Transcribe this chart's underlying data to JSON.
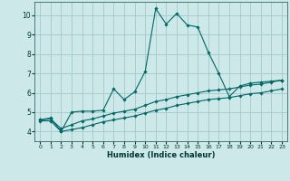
{
  "xlabel": "Humidex (Indice chaleur)",
  "bg_color": "#cce8e8",
  "grid_color": "#aacccc",
  "line_color": "#006666",
  "xlim": [
    -0.5,
    23.5
  ],
  "ylim": [
    3.5,
    10.7
  ],
  "yticks": [
    4,
    5,
    6,
    7,
    8,
    9,
    10
  ],
  "xticks": [
    0,
    1,
    2,
    3,
    4,
    5,
    6,
    7,
    8,
    9,
    10,
    11,
    12,
    13,
    14,
    15,
    16,
    17,
    18,
    19,
    20,
    21,
    22,
    23
  ],
  "series1_x": [
    0,
    1,
    2,
    3,
    4,
    5,
    6,
    7,
    8,
    9,
    10,
    11,
    12,
    13,
    14,
    15,
    16,
    17,
    18,
    19,
    20,
    21,
    22,
    23
  ],
  "series1_y": [
    4.6,
    4.7,
    4.0,
    5.0,
    5.05,
    5.05,
    5.1,
    6.2,
    5.65,
    6.05,
    7.1,
    10.35,
    9.55,
    10.1,
    9.5,
    9.4,
    8.1,
    7.0,
    5.8,
    6.35,
    6.5,
    6.55,
    6.6,
    6.65
  ],
  "series2_x": [
    0,
    1,
    2,
    3,
    4,
    5,
    6,
    7,
    8,
    9,
    10,
    11,
    12,
    13,
    14,
    15,
    16,
    17,
    18,
    19,
    20,
    21,
    22,
    23
  ],
  "series2_y": [
    4.6,
    4.65,
    4.15,
    4.35,
    4.55,
    4.65,
    4.8,
    4.95,
    5.05,
    5.15,
    5.35,
    5.55,
    5.65,
    5.8,
    5.9,
    6.0,
    6.1,
    6.15,
    6.2,
    6.3,
    6.4,
    6.45,
    6.55,
    6.65
  ],
  "series3_x": [
    0,
    1,
    2,
    3,
    4,
    5,
    6,
    7,
    8,
    9,
    10,
    11,
    12,
    13,
    14,
    15,
    16,
    17,
    18,
    19,
    20,
    21,
    22,
    23
  ],
  "series3_y": [
    4.55,
    4.55,
    4.0,
    4.1,
    4.2,
    4.35,
    4.5,
    4.6,
    4.7,
    4.8,
    4.95,
    5.1,
    5.2,
    5.35,
    5.45,
    5.55,
    5.65,
    5.7,
    5.75,
    5.85,
    5.95,
    6.0,
    6.1,
    6.2
  ]
}
